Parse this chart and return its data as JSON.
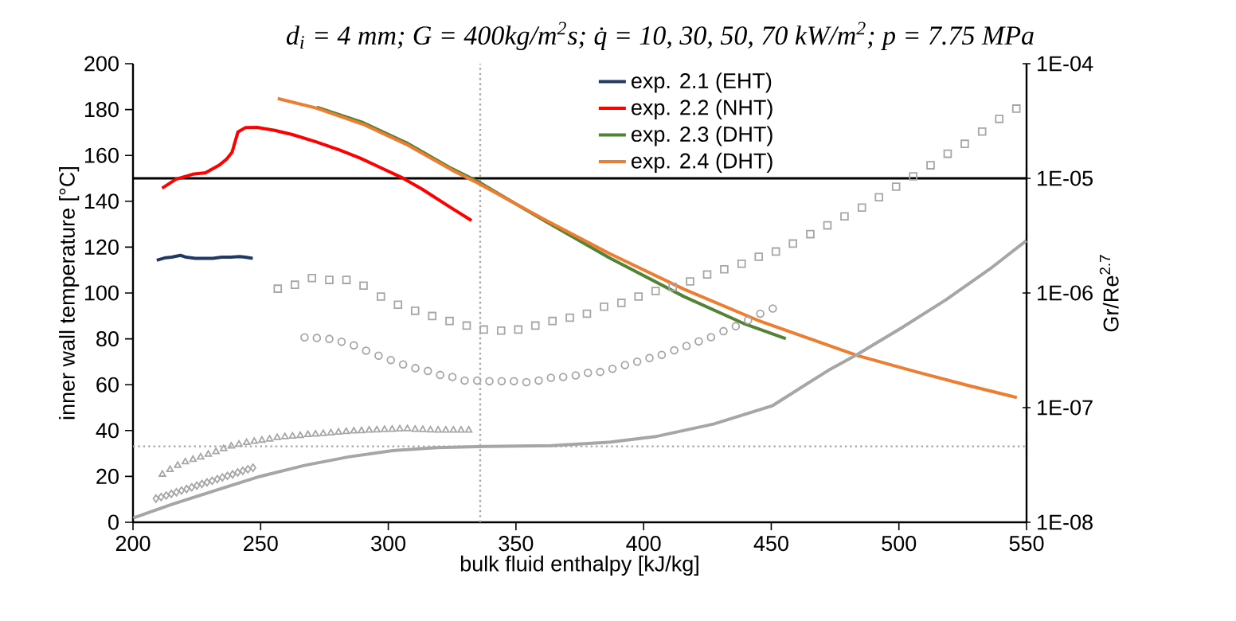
{
  "chart_data": {
    "type": "line",
    "title": "d$_{i}$ = 4 mm; G = 400kg/m$^{2}$s; q̇ = 10, 30, 50, 70 kW/m$^{2}$; p = 7.75 MPa",
    "xlabel": "bulk fluid enthalpy [kJ/kg]",
    "ylabel": "inner wall temperature [°C]",
    "y2label": "Gr/Re$^{2.7}$",
    "xlim": [
      200,
      550
    ],
    "xticks": [
      200,
      250,
      300,
      350,
      400,
      450,
      500,
      550
    ],
    "ylim": [
      0,
      200
    ],
    "yticks": [
      0,
      20,
      40,
      60,
      80,
      100,
      120,
      140,
      160,
      180,
      200
    ],
    "y2lim": [
      1e-08,
      0.0001
    ],
    "y2ticks": [
      {
        "value": 1e-08,
        "label": "1E-08"
      },
      {
        "value": 1e-07,
        "label": "1E-07"
      },
      {
        "value": 1e-06,
        "label": "1E-06"
      },
      {
        "value": 1e-05,
        "label": "1E-05"
      },
      {
        "value": 0.0001,
        "label": "1E-04"
      }
    ],
    "log": "y2",
    "legend": "top",
    "ref_lines": [
      {
        "axis": "y",
        "value": 150,
        "color": "#000000",
        "line_style": "solid"
      },
      {
        "axis": "x",
        "value": 336,
        "color": "#a6a6a6",
        "line_style": "dotted"
      },
      {
        "axis": "y2",
        "value": 4.6e-08,
        "color": "#a6a6a6",
        "line_style": "dotted"
      }
    ],
    "series": [
      {
        "name": "exp. 2.1 (EHT)",
        "color": "#1f3864",
        "x": [
          209.3,
          212.8,
          215.1,
          218.6,
          220.9,
          224.4,
          227.8,
          231.3,
          234.7,
          238.2,
          241.7,
          244.0,
          246.9
        ],
        "values": [
          114.3,
          115.4,
          115.6,
          116.4,
          115.6,
          115.1,
          115.1,
          115.1,
          115.6,
          115.6,
          115.9,
          115.6,
          115.1
        ]
      },
      {
        "name": "exp. 2.2 (NHT)",
        "color": "#ff0000",
        "x": [
          211.4,
          216.8,
          223.4,
          228.4,
          233.6,
          236.5,
          238.8,
          241.1,
          244.0,
          248.6,
          255.5,
          262.4,
          271.7,
          280.9,
          289.0,
          297.1,
          305.2,
          313.2,
          324.8,
          332.6
        ],
        "values": [
          145.7,
          149.6,
          151.8,
          152.4,
          155.6,
          158.2,
          161.4,
          170.2,
          172.1,
          172.2,
          170.9,
          169.1,
          165.9,
          162.4,
          158.8,
          154.6,
          150.4,
          145.3,
          137.0,
          131.6
        ]
      },
      {
        "name": "exp. 2.3 (DHT)",
        "color": "#548235",
        "x": [
          272.0,
          290.1,
          307.5,
          324.8,
          335.1,
          361.6,
          387.0,
          415.9,
          439.0,
          455.7
        ],
        "values": [
          181.0,
          174.3,
          165.3,
          154.3,
          148.6,
          131.2,
          115.1,
          98.4,
          86.8,
          80.1
        ]
      },
      {
        "name": "exp. 2.4 (DHT)",
        "color": "#ed7d31",
        "x": [
          256.7,
          271.7,
          290.1,
          307.5,
          324.8,
          335.1,
          361.6,
          387.0,
          415.9,
          444.7,
          472.3,
          483.8,
          506.9,
          526.6,
          546.2
        ],
        "values": [
          184.8,
          180.7,
          173.6,
          164.6,
          153.7,
          147.9,
          131.8,
          117.0,
          101.6,
          88.1,
          77.2,
          72.7,
          65.6,
          59.8,
          54.4
        ]
      },
      {
        "type": "scatter",
        "axis": "y2",
        "marker": "square",
        "color": "#a6a6a6",
        "x": [
          256.7,
          263.4,
          270.1,
          276.9,
          283.6,
          290.3,
          297.1,
          303.8,
          310.5,
          317.2,
          324.0,
          330.7,
          337.4,
          344.2,
          350.9,
          357.6,
          364.3,
          371.1,
          377.8,
          384.5,
          391.3,
          398.0,
          404.7,
          411.4,
          418.2,
          424.9,
          431.6,
          438.4,
          445.1,
          451.8,
          458.5,
          465.3,
          472.0,
          478.7,
          485.5,
          492.2,
          498.9,
          505.6,
          512.4,
          519.1,
          525.8,
          532.6,
          539.3,
          546.0
        ],
        "values": [
          1.09e-06,
          1.18e-06,
          1.35e-06,
          1.3e-06,
          1.3e-06,
          1.16e-06,
          9.3e-07,
          7.9e-07,
          7e-07,
          6.3e-07,
          5.7e-07,
          5.2e-07,
          4.8e-07,
          4.7e-07,
          4.8e-07,
          5.2e-07,
          5.7e-07,
          6.1e-07,
          6.6e-07,
          7.6e-07,
          8.2e-07,
          9.3e-07,
          1.04e-06,
          1.13e-06,
          1.26e-06,
          1.45e-06,
          1.61e-06,
          1.8e-06,
          2.07e-06,
          2.3e-06,
          2.7e-06,
          3.26e-06,
          3.89e-06,
          4.66e-06,
          5.56e-06,
          6.84e-06,
          8.45e-06,
          1.04e-05,
          1.3e-05,
          1.64e-05,
          2e-05,
          2.56e-05,
          3.3e-05,
          4.06e-05
        ]
      },
      {
        "type": "scatter",
        "axis": "y2",
        "marker": "circle",
        "color": "#a6a6a6",
        "x": [
          267.2,
          272.0,
          276.9,
          281.7,
          286.5,
          291.3,
          296.2,
          301.0,
          305.8,
          310.6,
          315.5,
          320.3,
          325.1,
          329.9,
          334.8,
          339.6,
          344.4,
          349.2,
          354.1,
          358.9,
          363.7,
          368.5,
          373.4,
          378.2,
          383.0,
          387.8,
          392.7,
          397.5,
          402.3,
          407.1,
          412.0,
          416.8,
          421.6,
          426.4,
          431.3,
          436.1,
          440.9,
          445.7,
          450.6
        ],
        "values": [
          4.1e-07,
          4.06e-07,
          3.98e-07,
          3.75e-07,
          3.49e-07,
          3.14e-07,
          2.84e-07,
          2.6e-07,
          2.38e-07,
          2.21e-07,
          2.09e-07,
          1.93e-07,
          1.85e-07,
          1.72e-07,
          1.72e-07,
          1.7e-07,
          1.7e-07,
          1.7e-07,
          1.67e-07,
          1.72e-07,
          1.82e-07,
          1.85e-07,
          1.91e-07,
          2.01e-07,
          2.05e-07,
          2.18e-07,
          2.35e-07,
          2.52e-07,
          2.71e-07,
          2.88e-07,
          3.16e-07,
          3.45e-07,
          3.78e-07,
          4.12e-07,
          4.65e-07,
          5.14e-07,
          5.78e-07,
          6.59e-07,
          7.33e-07
        ]
      },
      {
        "type": "scatter",
        "axis": "y2",
        "marker": "triangle",
        "color": "#a6a6a6",
        "x": [
          211.5,
          214.5,
          217.5,
          220.5,
          223.5,
          226.5,
          229.5,
          232.5,
          235.5,
          238.5,
          241.5,
          244.5,
          247.5,
          250.5,
          253.5,
          256.5,
          259.5,
          262.5,
          265.5,
          268.5,
          271.5,
          274.5,
          277.5,
          280.5,
          283.5,
          286.5,
          289.5,
          292.5,
          295.5,
          298.5,
          301.5,
          304.5,
          307.5,
          310.5,
          313.5,
          316.5,
          319.5,
          322.5,
          325.5,
          328.5,
          331.5
        ],
        "values": [
          2.62e-08,
          2.88e-08,
          3.13e-08,
          3.36e-08,
          3.53e-08,
          3.7e-08,
          3.91e-08,
          4.12e-08,
          4.38e-08,
          4.61e-08,
          4.78e-08,
          4.95e-08,
          5.07e-08,
          5.19e-08,
          5.31e-08,
          5.47e-08,
          5.57e-08,
          5.64e-08,
          5.7e-08,
          5.81e-08,
          5.87e-08,
          5.94e-08,
          6.01e-08,
          6.1e-08,
          6.17e-08,
          6.24e-08,
          6.27e-08,
          6.35e-08,
          6.38e-08,
          6.43e-08,
          6.46e-08,
          6.5e-08,
          6.53e-08,
          6.46e-08,
          6.43e-08,
          6.38e-08,
          6.35e-08,
          6.35e-08,
          6.35e-08,
          6.35e-08,
          6.35e-08
        ]
      },
      {
        "type": "scatter",
        "axis": "y2",
        "marker": "diamond",
        "color": "#a6a6a6",
        "x": [
          209,
          211,
          213,
          215,
          217,
          219,
          221,
          223,
          225,
          227,
          229,
          231,
          233,
          235,
          237,
          239,
          241,
          243,
          245,
          247
        ],
        "values": [
          1.61e-08,
          1.66e-08,
          1.71e-08,
          1.77e-08,
          1.83e-08,
          1.89e-08,
          1.95e-08,
          2.02e-08,
          2.09e-08,
          2.16e-08,
          2.23e-08,
          2.3e-08,
          2.38e-08,
          2.46e-08,
          2.54e-08,
          2.62e-08,
          2.72e-08,
          2.81e-08,
          2.9e-08,
          2.99e-08
        ]
      },
      {
        "type": "line",
        "axis": "y2",
        "color": "#a6a6a6",
        "x": [
          200.1,
          215.1,
          232.4,
          249.7,
          267.1,
          284.4,
          301.7,
          319.0,
          338.2,
          363.9,
          387.0,
          404.3,
          427.4,
          450.5,
          472.3,
          483.8,
          501.2,
          518.5,
          535.8,
          549.9
        ],
        "values": [
          1.09e-08,
          1.43e-08,
          1.9e-08,
          2.51e-08,
          3.13e-08,
          3.72e-08,
          4.22e-08,
          4.48e-08,
          4.58e-08,
          4.66e-08,
          5.01e-08,
          5.57e-08,
          7.19e-08,
          1.04e-07,
          2.11e-07,
          2.92e-07,
          4.99e-07,
          8.75e-07,
          1.63e-06,
          2.86e-06
        ]
      }
    ]
  }
}
